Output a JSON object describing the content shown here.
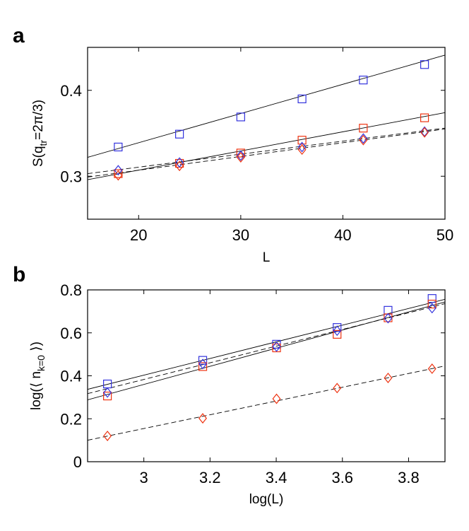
{
  "chart_data": [
    {
      "panel": "a",
      "type": "scatter",
      "xlabel": "L",
      "ylabel": "S(q_tr=2π/3)",
      "ylabel_parts": {
        "main": "S(q",
        "sub": "tr",
        "rest": "=2π/3)"
      },
      "xlim": [
        15,
        50
      ],
      "ylim": [
        0.25,
        0.45
      ],
      "xticks": [
        20,
        30,
        40,
        50
      ],
      "xtick_labels": [
        "20",
        "30",
        "40",
        "50"
      ],
      "yticks": [
        0.3,
        0.4
      ],
      "ytick_labels": [
        "0.3",
        "0.4"
      ],
      "series": [
        {
          "name": "blue squares",
          "marker": "square",
          "color": "#3333dd",
          "x": [
            18,
            24,
            30,
            36,
            42,
            48
          ],
          "y": [
            0.334,
            0.349,
            0.369,
            0.39,
            0.412,
            0.43
          ]
        },
        {
          "name": "red squares",
          "marker": "square",
          "color": "#ee3311",
          "x": [
            18,
            24,
            30,
            36,
            42,
            48
          ],
          "y": [
            0.303,
            0.315,
            0.327,
            0.342,
            0.356,
            0.368
          ]
        },
        {
          "name": "blue diamonds",
          "marker": "diamond",
          "color": "#3333dd",
          "x": [
            18,
            24,
            30,
            36,
            42,
            48
          ],
          "y": [
            0.307,
            0.316,
            0.324,
            0.334,
            0.344,
            0.352
          ]
        },
        {
          "name": "red diamonds",
          "marker": "diamond",
          "color": "#ee3311",
          "x": [
            18,
            24,
            30,
            36,
            42,
            48
          ],
          "y": [
            0.301,
            0.312,
            0.322,
            0.331,
            0.342,
            0.351
          ]
        }
      ],
      "fit_lines": [
        {
          "style": "solid",
          "x": [
            15,
            50
          ],
          "y": [
            0.322,
            0.441
          ]
        },
        {
          "style": "solid",
          "x": [
            15,
            50
          ],
          "y": [
            0.296,
            0.374
          ]
        },
        {
          "style": "dashed",
          "x": [
            15,
            50
          ],
          "y": [
            0.303,
            0.356
          ]
        },
        {
          "style": "dashed",
          "x": [
            15,
            50
          ],
          "y": [
            0.299,
            0.355
          ]
        }
      ]
    },
    {
      "panel": "b",
      "type": "scatter",
      "xlabel": "log(L)",
      "ylabel": "log(⟨ n_k=0 ⟩)",
      "ylabel_parts": {
        "main": "log(⟨ n",
        "sub": "k=0",
        "rest": " ⟩)"
      },
      "xlim": [
        2.83,
        3.91
      ],
      "ylim": [
        0,
        0.8
      ],
      "xticks": [
        3,
        3.2,
        3.4,
        3.6,
        3.8
      ],
      "xtick_labels": [
        "3",
        "3.2",
        "3.4",
        "3.6",
        "3.8"
      ],
      "yticks": [
        0,
        0.2,
        0.4,
        0.6,
        0.8
      ],
      "ytick_labels": [
        "0",
        "0.2",
        "0.4",
        "0.6",
        "0.8"
      ],
      "series": [
        {
          "name": "blue squares",
          "marker": "square",
          "color": "#3333dd",
          "x": [
            2.89,
            3.178,
            3.401,
            3.584,
            3.738,
            3.871
          ],
          "y": [
            0.362,
            0.472,
            0.547,
            0.625,
            0.705,
            0.76
          ]
        },
        {
          "name": "red squares",
          "marker": "square",
          "color": "#ee3311",
          "x": [
            2.89,
            3.178,
            3.401,
            3.584,
            3.738,
            3.871
          ],
          "y": [
            0.306,
            0.443,
            0.53,
            0.593,
            0.67,
            0.734
          ]
        },
        {
          "name": "blue diamonds",
          "marker": "diamond",
          "color": "#3333dd",
          "x": [
            2.89,
            3.178,
            3.401,
            3.584,
            3.738,
            3.871
          ],
          "y": [
            0.322,
            0.455,
            0.536,
            0.61,
            0.668,
            0.715
          ]
        },
        {
          "name": "red diamonds",
          "marker": "diamond",
          "color": "#ee3311",
          "x": [
            2.89,
            3.178,
            3.401,
            3.584,
            3.738,
            3.871
          ],
          "y": [
            0.12,
            0.202,
            0.293,
            0.343,
            0.39,
            0.433
          ]
        }
      ],
      "fit_lines": [
        {
          "style": "solid",
          "x": [
            2.83,
            3.91
          ],
          "y": [
            0.337,
            0.756
          ]
        },
        {
          "style": "solid",
          "x": [
            2.83,
            3.91
          ],
          "y": [
            0.288,
            0.744
          ]
        },
        {
          "style": "dashed",
          "x": [
            2.83,
            3.91
          ],
          "y": [
            0.317,
            0.736
          ]
        },
        {
          "style": "dashed",
          "x": [
            2.83,
            3.91
          ],
          "y": [
            0.1,
            0.446
          ]
        }
      ]
    }
  ]
}
